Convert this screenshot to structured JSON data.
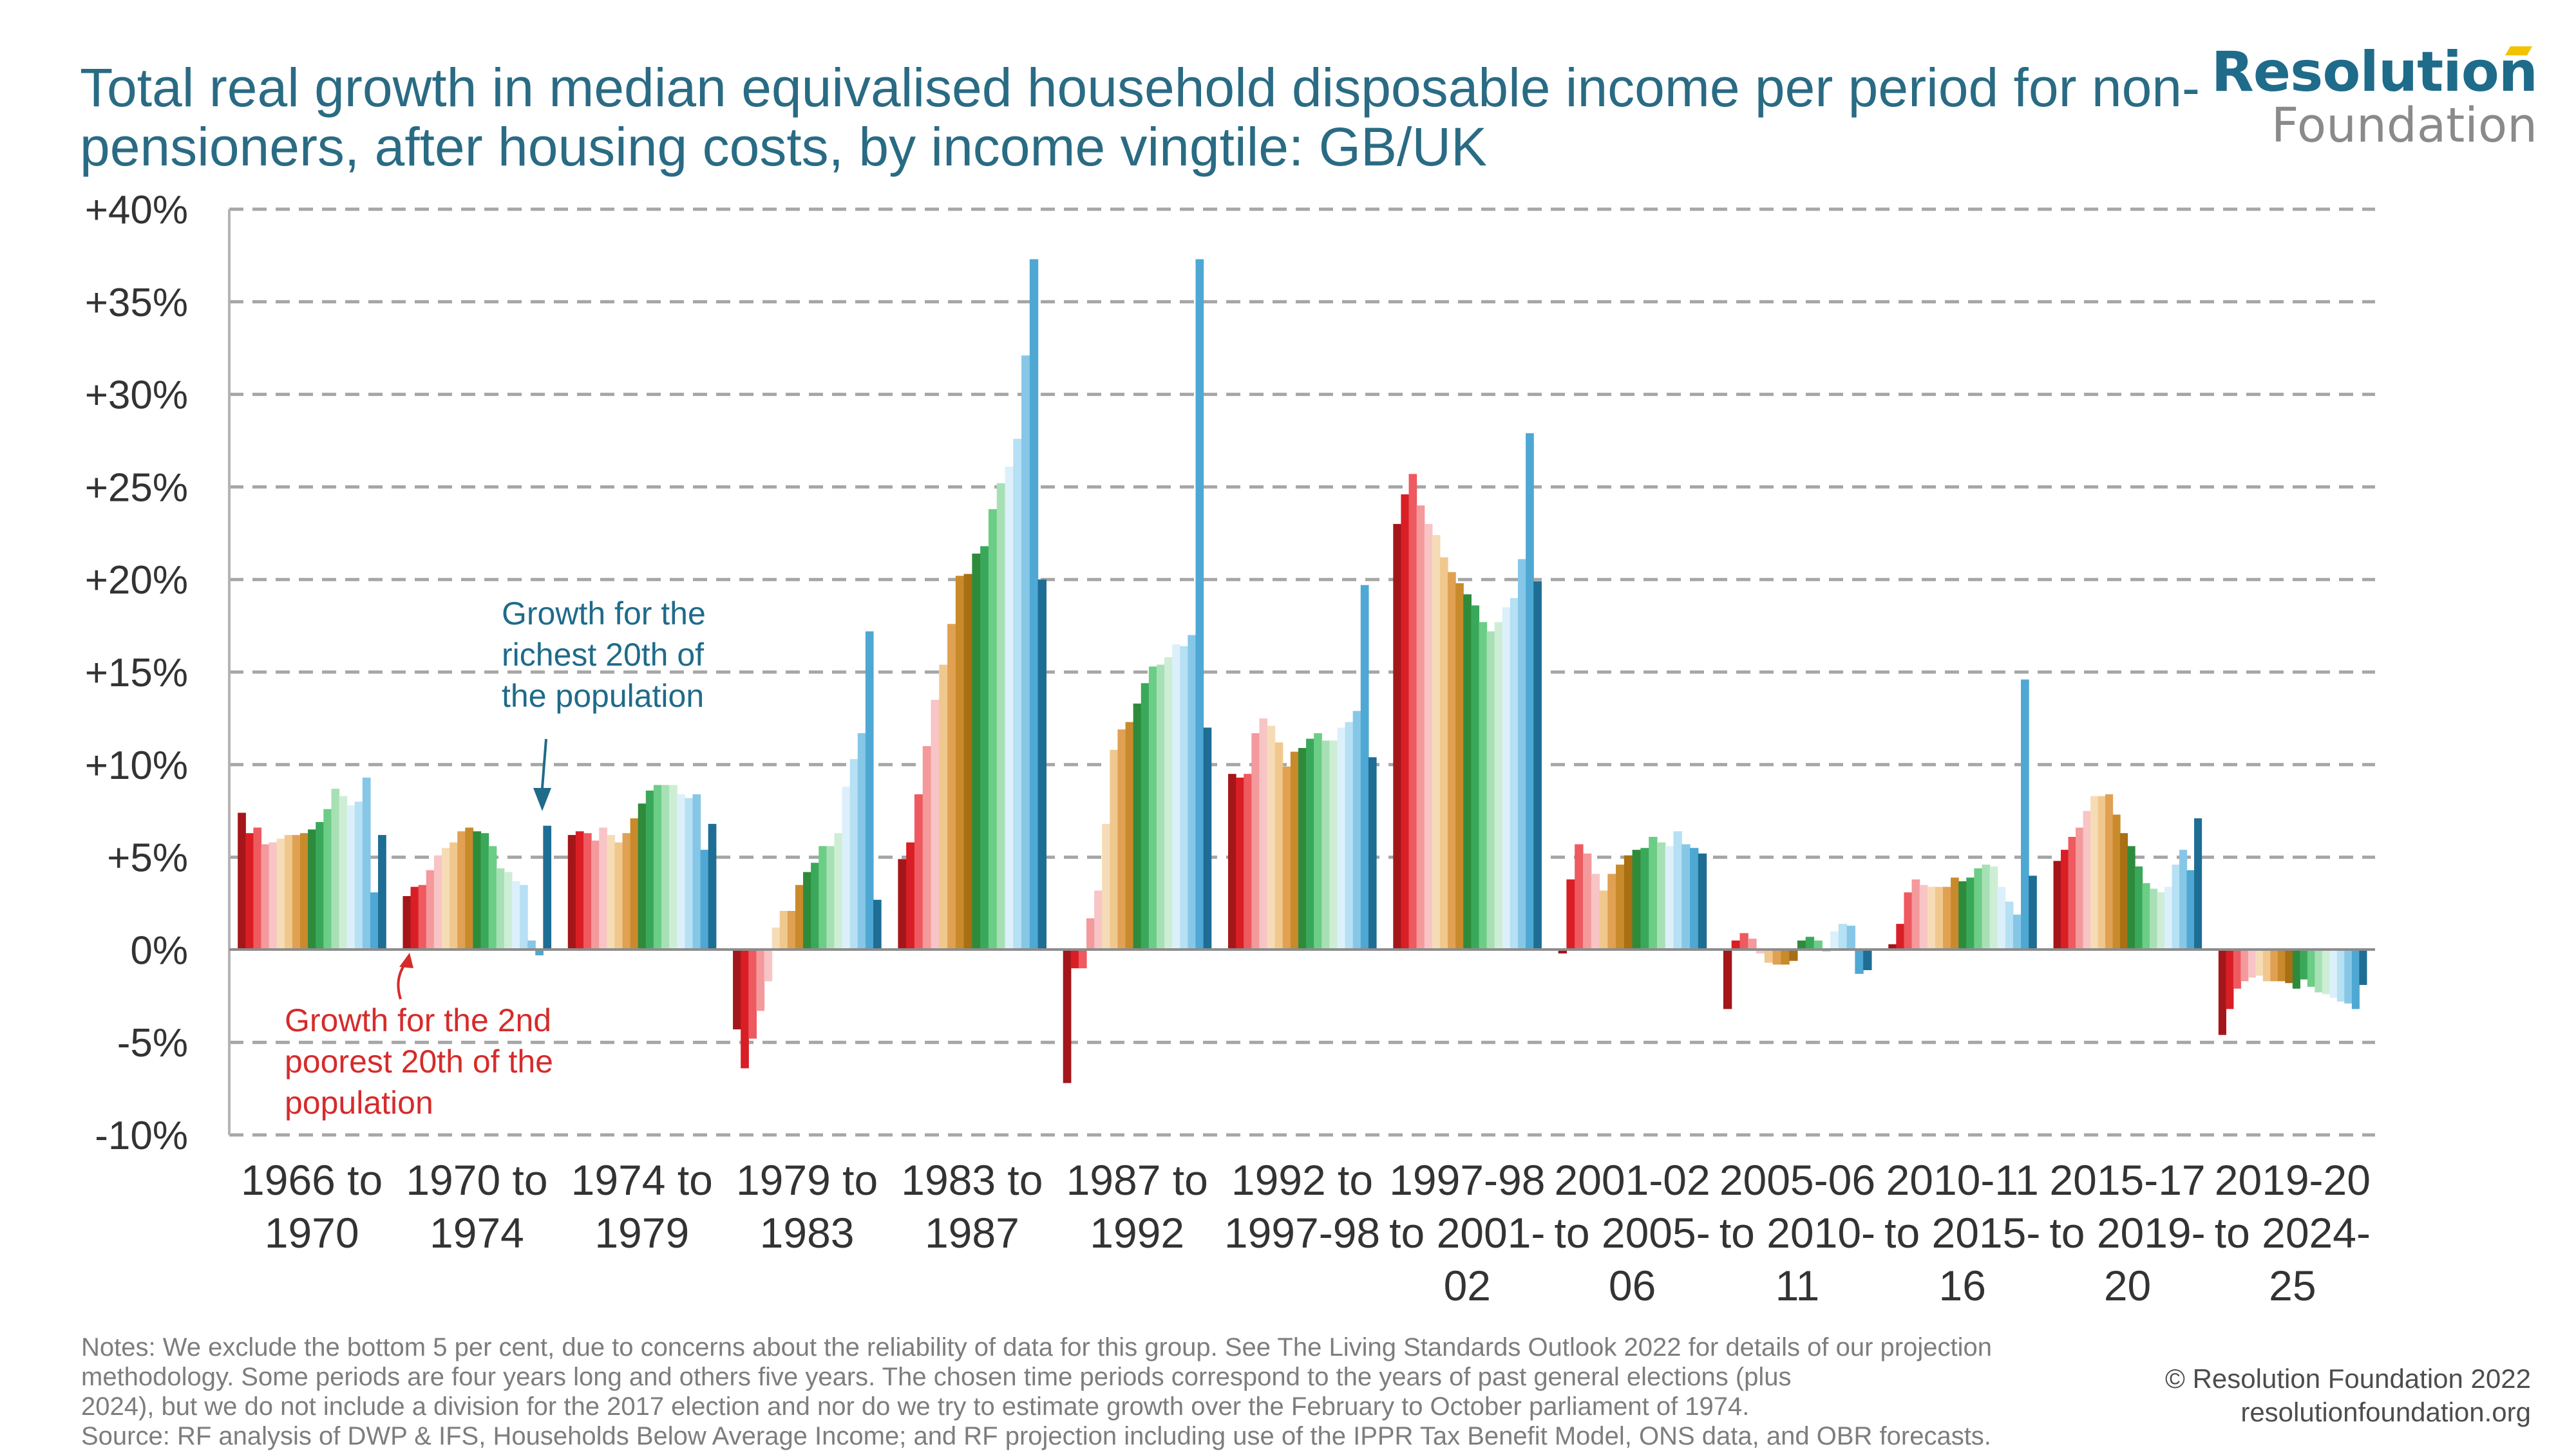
{
  "title": "Total real growth in median equivalised household disposable income per period for non-pensioners, after housing costs, by income vingtile: GB/UK",
  "logo": {
    "line1": "Resolution",
    "line2": "Foundation"
  },
  "notes": [
    "Notes: We exclude the bottom 5 per cent, due to concerns about the reliability of data for this group. See The Living Standards Outlook 2022 for details of our projection",
    "methodology. Some periods are four years long and others five years. The chosen time periods correspond to the years of past general elections (plus",
    "2024), but we do not include a division for the 2017 election and nor do we try to estimate growth over the February to October parliament of 1974.",
    "Source: RF analysis of DWP & IFS, Households Below Average Income; and RF projection including use of the IPPR Tax Benefit Model, ONS data, and OBR forecasts."
  ],
  "copyright": [
    "© Resolution Foundation 2022",
    "resolutionfoundation.org"
  ],
  "colors": {
    "title": "#2a6b84",
    "vingtiles": [
      "#a4161a",
      "#d91e26",
      "#ee5a5f",
      "#f4999c",
      "#f8c4c5",
      "#f6dcb6",
      "#f0c88e",
      "#e0a153",
      "#c98a2b",
      "#a86f13",
      "#2e8b3c",
      "#3aa85a",
      "#6ccd86",
      "#a8e0b5",
      "#cdeed5",
      "#dcf0fb",
      "#b6e0f3",
      "#86c7e7",
      "#4ea8d3",
      "#1e6d94"
    ],
    "annotation_red": "#d62b2b",
    "annotation_blue": "#1f6b8a",
    "grid": "#a6a6a6",
    "axis_text": "#333333"
  },
  "chart_data": {
    "type": "bar",
    "ylim": [
      -10,
      40
    ],
    "yticks": [
      40,
      35,
      30,
      25,
      20,
      15,
      10,
      5,
      0,
      -5,
      -10
    ],
    "ytick_labels": [
      "+40%",
      "+35%",
      "+30%",
      "+25%",
      "+20%",
      "+15%",
      "+10%",
      "+5%",
      "0%",
      "-5%",
      "-10%"
    ],
    "grid": true,
    "categories": [
      [
        "1966 to",
        "1970"
      ],
      [
        "1970 to",
        "1974"
      ],
      [
        "1974 to",
        "1979"
      ],
      [
        "1979 to",
        "1983"
      ],
      [
        "1983 to",
        "1987"
      ],
      [
        "1987 to",
        "1992"
      ],
      [
        "1992 to",
        "1997-98"
      ],
      [
        "1997-98",
        "to 2001-",
        "02"
      ],
      [
        "2001-02",
        "to 2005-",
        "06"
      ],
      [
        "2005-06",
        "to 2010-",
        "11"
      ],
      [
        "2010-11",
        "to 2015-",
        "16"
      ],
      [
        "2015-17",
        "to 2019-",
        "20"
      ],
      [
        "2019-20",
        "to 2024-",
        "25"
      ]
    ],
    "values": [
      [
        7.4,
        6.3,
        6.6,
        5.7,
        5.8,
        6.0,
        6.2,
        6.2,
        6.3,
        6.5,
        6.9,
        7.6,
        8.7,
        8.3,
        7.8,
        8.0,
        9.3,
        3.1,
        6.2
      ],
      [
        2.9,
        3.4,
        3.5,
        4.3,
        5.1,
        5.5,
        5.8,
        6.4,
        6.6,
        6.4,
        6.3,
        5.6,
        4.4,
        4.2,
        3.7,
        3.5,
        0.5,
        -0.3,
        6.7
      ],
      [
        6.2,
        6.4,
        6.3,
        5.9,
        6.6,
        6.2,
        5.8,
        6.3,
        7.1,
        7.9,
        8.6,
        8.9,
        8.9,
        8.9,
        8.4,
        8.2,
        8.4,
        5.4,
        6.8
      ],
      [
        -4.3,
        -6.4,
        -4.8,
        -3.3,
        -1.7,
        1.2,
        2.1,
        2.1,
        3.5,
        4.2,
        4.7,
        5.6,
        5.6,
        6.3,
        8.8,
        10.3,
        11.7,
        17.2,
        2.7
      ],
      [
        4.9,
        5.8,
        8.4,
        11.0,
        13.5,
        15.4,
        17.6,
        20.2,
        20.3,
        21.4,
        21.8,
        23.8,
        25.2,
        26.1,
        27.6,
        32.1,
        37.3,
        20.0
      ],
      [
        -7.2,
        -1.0,
        -1.0,
        1.7,
        3.2,
        6.8,
        10.8,
        11.9,
        12.3,
        13.3,
        14.4,
        15.3,
        15.4,
        15.8,
        16.5,
        16.4,
        17.0,
        37.3,
        12.0
      ],
      [
        9.5,
        9.3,
        9.5,
        11.7,
        12.5,
        12.1,
        11.2,
        9.9,
        10.7,
        10.9,
        11.4,
        11.7,
        11.3,
        11.3,
        12.0,
        12.3,
        12.9,
        19.7,
        10.4
      ],
      [
        23.0,
        24.6,
        25.7,
        24.0,
        23.0,
        22.4,
        21.2,
        20.4,
        19.8,
        19.2,
        18.6,
        17.7,
        17.2,
        17.7,
        18.5,
        19.0,
        21.1,
        27.9,
        19.9
      ],
      [
        -0.2,
        3.8,
        5.7,
        5.2,
        4.1,
        3.2,
        4.1,
        4.6,
        5.1,
        5.4,
        5.5,
        6.1,
        5.8,
        5.6,
        6.4,
        5.7,
        5.5,
        5.2
      ],
      [
        -3.2,
        0.5,
        0.9,
        0.6,
        -0.2,
        -0.7,
        -0.8,
        -0.8,
        -0.6,
        0.5,
        0.7,
        0.5,
        -0.1,
        1.0,
        1.4,
        1.3,
        -1.3,
        -1.1
      ],
      [
        0.3,
        1.4,
        3.1,
        3.8,
        3.5,
        3.4,
        3.4,
        3.4,
        3.9,
        3.7,
        3.9,
        4.4,
        4.6,
        4.5,
        3.4,
        2.6,
        1.9,
        14.6,
        4.0
      ],
      [
        4.8,
        5.4,
        6.1,
        6.6,
        7.5,
        8.3,
        8.3,
        8.4,
        7.3,
        6.3,
        5.6,
        4.5,
        3.6,
        3.3,
        3.1,
        3.4,
        4.6,
        5.4,
        4.3,
        7.1
      ],
      [
        -4.6,
        -3.2,
        -2.1,
        -1.7,
        -1.5,
        -1.4,
        -1.7,
        -1.7,
        -1.7,
        -1.8,
        -2.1,
        -1.6,
        -2.0,
        -2.3,
        -2.4,
        -2.6,
        -2.8,
        -2.9,
        -3.2,
        -1.9
      ]
    ],
    "annotations": [
      {
        "lines": [
          "Growth for the",
          "richest 20th of",
          "the population"
        ],
        "color": "blue"
      },
      {
        "lines": [
          "Growth for the 2nd",
          "poorest 20th of the",
          "population"
        ],
        "color": "red"
      }
    ]
  }
}
